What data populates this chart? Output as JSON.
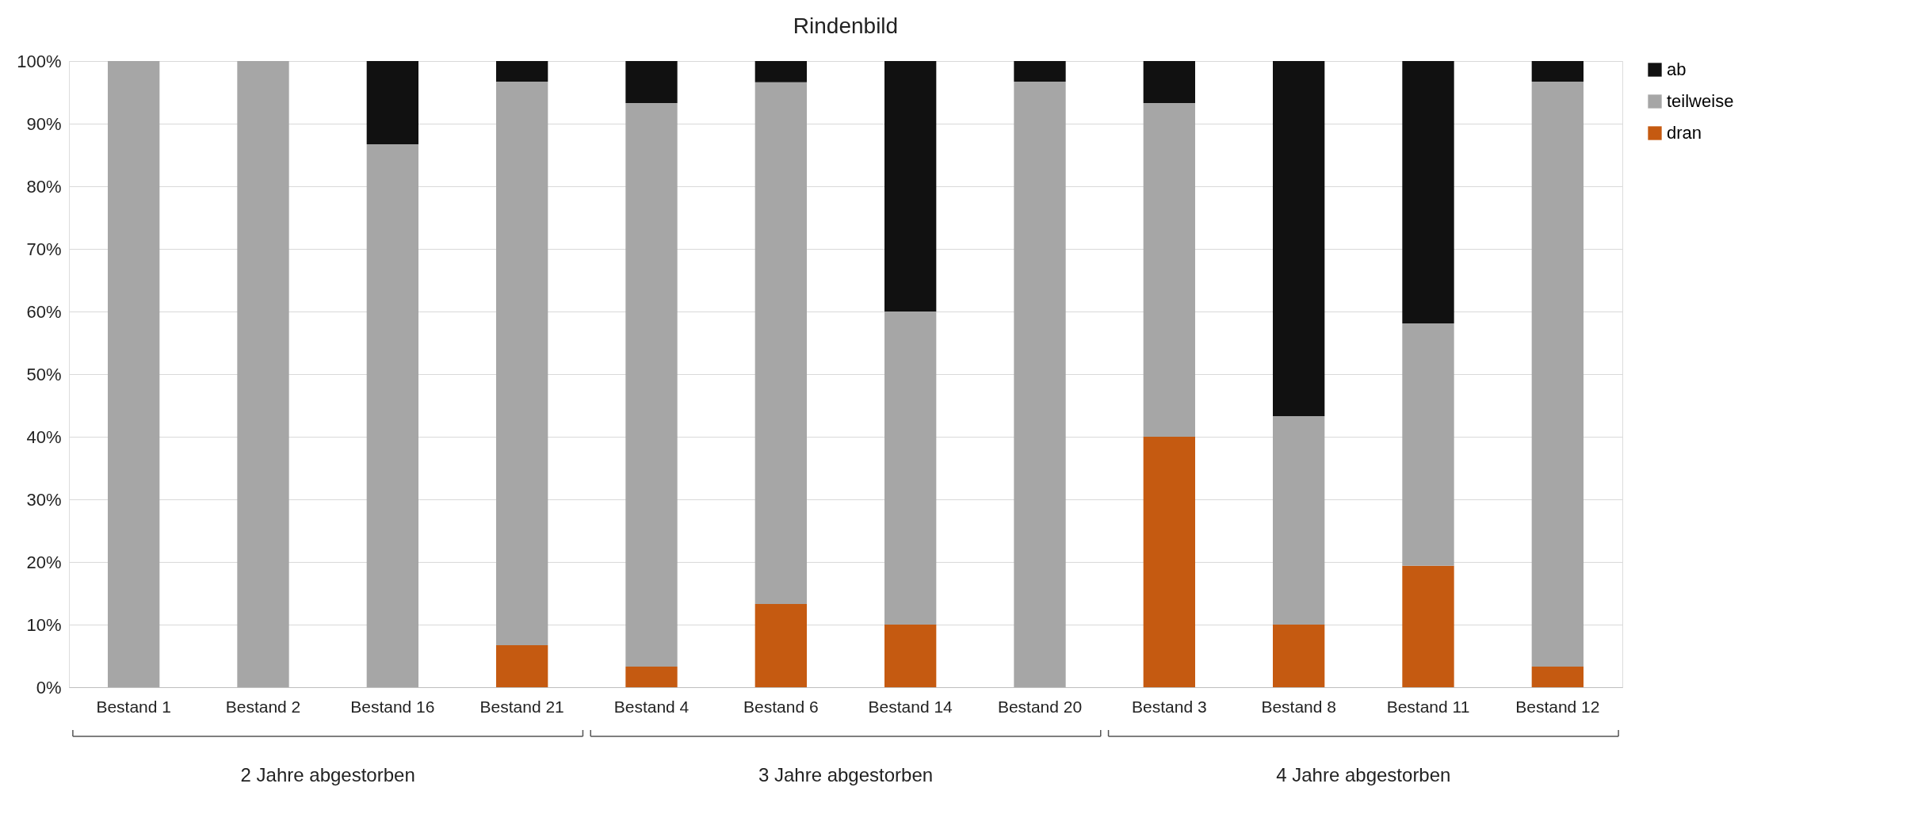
{
  "chart_data": {
    "type": "bar",
    "title": "Rindenbild",
    "stacked": true,
    "categories": [
      "Bestand 1",
      "Bestand 2",
      "Bestand 16",
      "Bestand 21",
      "Bestand 4",
      "Bestand 6",
      "Bestand 14",
      "Bestand 20",
      "Bestand 3",
      "Bestand 8",
      "Bestand 11",
      "Bestand 12"
    ],
    "series": [
      {
        "name": "dran",
        "color": "#c55a11",
        "values": [
          0,
          0,
          0,
          6.7,
          3.3,
          13.3,
          10,
          0,
          40,
          10,
          19.4,
          3.3
        ]
      },
      {
        "name": "teilweise",
        "color": "#a6a6a6",
        "values": [
          100,
          100,
          86.7,
          90,
          90,
          83.3,
          50,
          96.7,
          53.3,
          33.3,
          38.7,
          93.4
        ]
      },
      {
        "name": "ab",
        "color": "#111111",
        "values": [
          0,
          0,
          13.3,
          3.3,
          6.7,
          3.4,
          40,
          3.3,
          6.7,
          56.7,
          41.9,
          3.3
        ]
      }
    ],
    "ylim": [
      0,
      100
    ],
    "yticks": [
      {
        "value": 0,
        "label": "0%"
      },
      {
        "value": 10,
        "label": "10%"
      },
      {
        "value": 20,
        "label": "20%"
      },
      {
        "value": 30,
        "label": "30%"
      },
      {
        "value": 40,
        "label": "40%"
      },
      {
        "value": 50,
        "label": "50%"
      },
      {
        "value": 60,
        "label": "60%"
      },
      {
        "value": 70,
        "label": "70%"
      },
      {
        "value": 80,
        "label": "80%"
      },
      {
        "value": 90,
        "label": "90%"
      },
      {
        "value": 100,
        "label": "100%"
      }
    ],
    "grid": "y",
    "legend": "right",
    "annotations": [
      "2 Jahre abgestorben",
      "3 Jahre abgestorben",
      "4 Jahre abgestorben"
    ]
  }
}
